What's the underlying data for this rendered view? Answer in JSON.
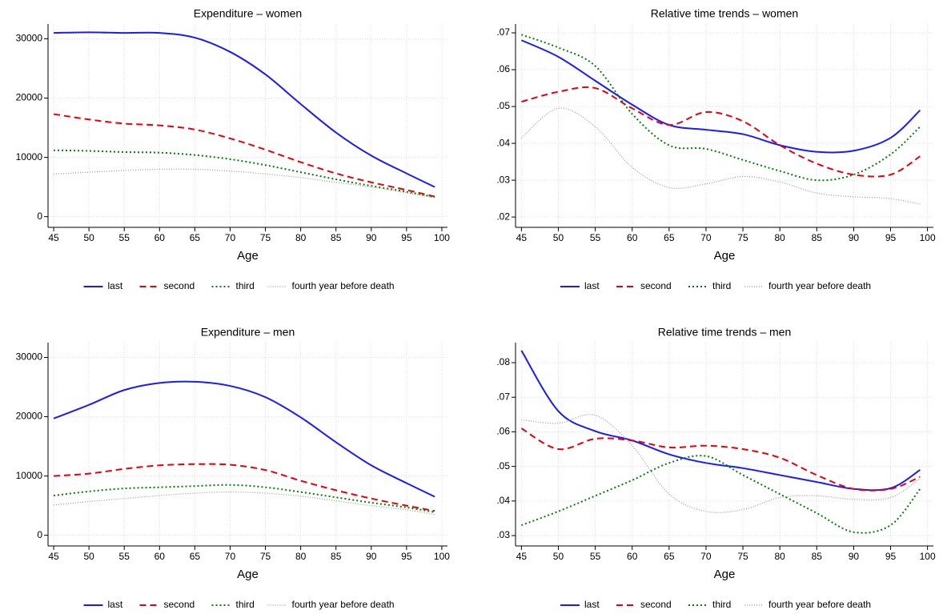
{
  "chart_data": [
    {
      "type": "line",
      "title": "Expenditure – women",
      "x_label": "Age",
      "x": [
        45,
        50,
        55,
        60,
        65,
        70,
        75,
        80,
        85,
        90,
        95,
        99
      ],
      "xlim": [
        44.2,
        100.8
      ],
      "xticks": [
        45,
        50,
        55,
        60,
        65,
        70,
        75,
        80,
        85,
        90,
        95,
        100
      ],
      "ylim": [
        -1800,
        32500
      ],
      "yticks": [
        0,
        10000,
        20000,
        30000
      ],
      "grid": true,
      "legend": "bottom",
      "series": [
        {
          "name": "last",
          "color": "#1a1aff",
          "style": "solid",
          "values": [
            31000,
            31100,
            31000,
            31000,
            30200,
            27800,
            24000,
            19000,
            14200,
            10300,
            7300,
            5000
          ]
        },
        {
          "name": "second",
          "color": "#e8000b",
          "style": "dash",
          "values": [
            17300,
            16400,
            15700,
            15400,
            14700,
            13200,
            11300,
            9200,
            7300,
            5800,
            4500,
            3400
          ]
        },
        {
          "name": "third",
          "color": "#008000",
          "style": "dot",
          "values": [
            11200,
            11100,
            10900,
            10800,
            10400,
            9700,
            8700,
            7500,
            6300,
            5200,
            4200,
            3300
          ]
        },
        {
          "name": "fourth year before death",
          "color": "#999999",
          "style": "finedot",
          "values": [
            7200,
            7500,
            7800,
            8000,
            8000,
            7700,
            7200,
            6600,
            5800,
            5000,
            4000,
            3200
          ]
        }
      ]
    },
    {
      "type": "line",
      "title": "Relative time trends – women",
      "x_label": "Age",
      "x": [
        45,
        50,
        55,
        60,
        65,
        70,
        75,
        80,
        85,
        90,
        95,
        99
      ],
      "xlim": [
        44.2,
        100.8
      ],
      "xticks": [
        45,
        50,
        55,
        60,
        65,
        70,
        75,
        80,
        85,
        90,
        95,
        100
      ],
      "ylim": [
        0.0172,
        0.0724
      ],
      "yticks": [
        {
          "value": 0.02,
          "label": ".02"
        },
        {
          "value": 0.03,
          "label": ".03"
        },
        {
          "value": 0.04,
          "label": ".04"
        },
        {
          "value": 0.05,
          "label": ".05"
        },
        {
          "value": 0.06,
          "label": ".06"
        },
        {
          "value": 0.07,
          "label": ".07"
        }
      ],
      "grid": true,
      "legend": "bottom",
      "series": [
        {
          "name": "last",
          "color": "#1a1aff",
          "style": "solid",
          "values": [
            0.068,
            0.0635,
            0.057,
            0.0505,
            0.045,
            0.0437,
            0.0425,
            0.0395,
            0.0377,
            0.038,
            0.0415,
            0.049
          ]
        },
        {
          "name": "second",
          "color": "#e8000b",
          "style": "dash",
          "values": [
            0.0513,
            0.054,
            0.055,
            0.0495,
            0.045,
            0.0485,
            0.046,
            0.0395,
            0.0345,
            0.0315,
            0.0315,
            0.0365
          ]
        },
        {
          "name": "third",
          "color": "#008000",
          "style": "dot",
          "values": [
            0.0695,
            0.066,
            0.061,
            0.048,
            0.0395,
            0.0385,
            0.0355,
            0.0325,
            0.03,
            0.0315,
            0.037,
            0.0445
          ]
        },
        {
          "name": "fourth year before death",
          "color": "#999999",
          "style": "finedot",
          "values": [
            0.0415,
            0.0495,
            0.0445,
            0.0335,
            0.028,
            0.029,
            0.031,
            0.0295,
            0.0265,
            0.0255,
            0.025,
            0.0235
          ]
        }
      ]
    },
    {
      "type": "line",
      "title": "Expenditure – men",
      "x_label": "Age",
      "x": [
        45,
        50,
        55,
        60,
        65,
        70,
        75,
        80,
        85,
        90,
        95,
        99
      ],
      "xlim": [
        44.2,
        100.8
      ],
      "xticks": [
        45,
        50,
        55,
        60,
        65,
        70,
        75,
        80,
        85,
        90,
        95,
        100
      ],
      "ylim": [
        -1800,
        32500
      ],
      "yticks": [
        0,
        10000,
        20000,
        30000
      ],
      "grid": true,
      "legend": "bottom",
      "series": [
        {
          "name": "last",
          "color": "#1a1aff",
          "style": "solid",
          "values": [
            19700,
            22000,
            24500,
            25700,
            25900,
            25200,
            23300,
            19900,
            15700,
            11800,
            8800,
            6500
          ]
        },
        {
          "name": "second",
          "color": "#e8000b",
          "style": "dash",
          "values": [
            10000,
            10400,
            11200,
            11800,
            12000,
            11900,
            11000,
            9200,
            7600,
            6200,
            5000,
            4100
          ]
        },
        {
          "name": "third",
          "color": "#008000",
          "style": "dot",
          "values": [
            6700,
            7400,
            7900,
            8100,
            8300,
            8500,
            8100,
            7300,
            6400,
            5500,
            4700,
            3900
          ]
        },
        {
          "name": "fourth year before death",
          "color": "#999999",
          "style": "finedot",
          "values": [
            5100,
            5700,
            6200,
            6700,
            7100,
            7300,
            7100,
            6600,
            5800,
            5000,
            4300,
            3500
          ]
        }
      ]
    },
    {
      "type": "line",
      "title": "Relative time trends – men",
      "x_label": "Age",
      "x": [
        45,
        50,
        55,
        60,
        65,
        70,
        75,
        80,
        85,
        90,
        95,
        99
      ],
      "xlim": [
        44.2,
        100.8
      ],
      "xticks": [
        45,
        50,
        55,
        60,
        65,
        70,
        75,
        80,
        85,
        90,
        95,
        100
      ],
      "ylim": [
        0.027,
        0.0858
      ],
      "yticks": [
        {
          "value": 0.03,
          "label": ".03"
        },
        {
          "value": 0.04,
          "label": ".04"
        },
        {
          "value": 0.05,
          "label": ".05"
        },
        {
          "value": 0.06,
          "label": ".06"
        },
        {
          "value": 0.07,
          "label": ".07"
        },
        {
          "value": 0.08,
          "label": ".08"
        }
      ],
      "grid": true,
      "legend": "bottom",
      "series": [
        {
          "name": "last",
          "color": "#1a1aff",
          "style": "solid",
          "values": [
            0.0835,
            0.066,
            0.0602,
            0.0575,
            0.0535,
            0.051,
            0.0495,
            0.0475,
            0.0455,
            0.0435,
            0.0437,
            0.049
          ]
        },
        {
          "name": "second",
          "color": "#e8000b",
          "style": "dash",
          "values": [
            0.061,
            0.055,
            0.058,
            0.0575,
            0.0555,
            0.056,
            0.055,
            0.0525,
            0.0475,
            0.0435,
            0.0435,
            0.047
          ]
        },
        {
          "name": "third",
          "color": "#008000",
          "style": "dot",
          "values": [
            0.033,
            0.037,
            0.0415,
            0.046,
            0.051,
            0.053,
            0.0475,
            0.042,
            0.0365,
            0.031,
            0.033,
            0.0435
          ]
        },
        {
          "name": "fourth year before death",
          "color": "#999999",
          "style": "finedot",
          "values": [
            0.0635,
            0.0625,
            0.0648,
            0.056,
            0.042,
            0.037,
            0.0375,
            0.041,
            0.0415,
            0.0405,
            0.041,
            0.0465
          ]
        }
      ]
    }
  ]
}
